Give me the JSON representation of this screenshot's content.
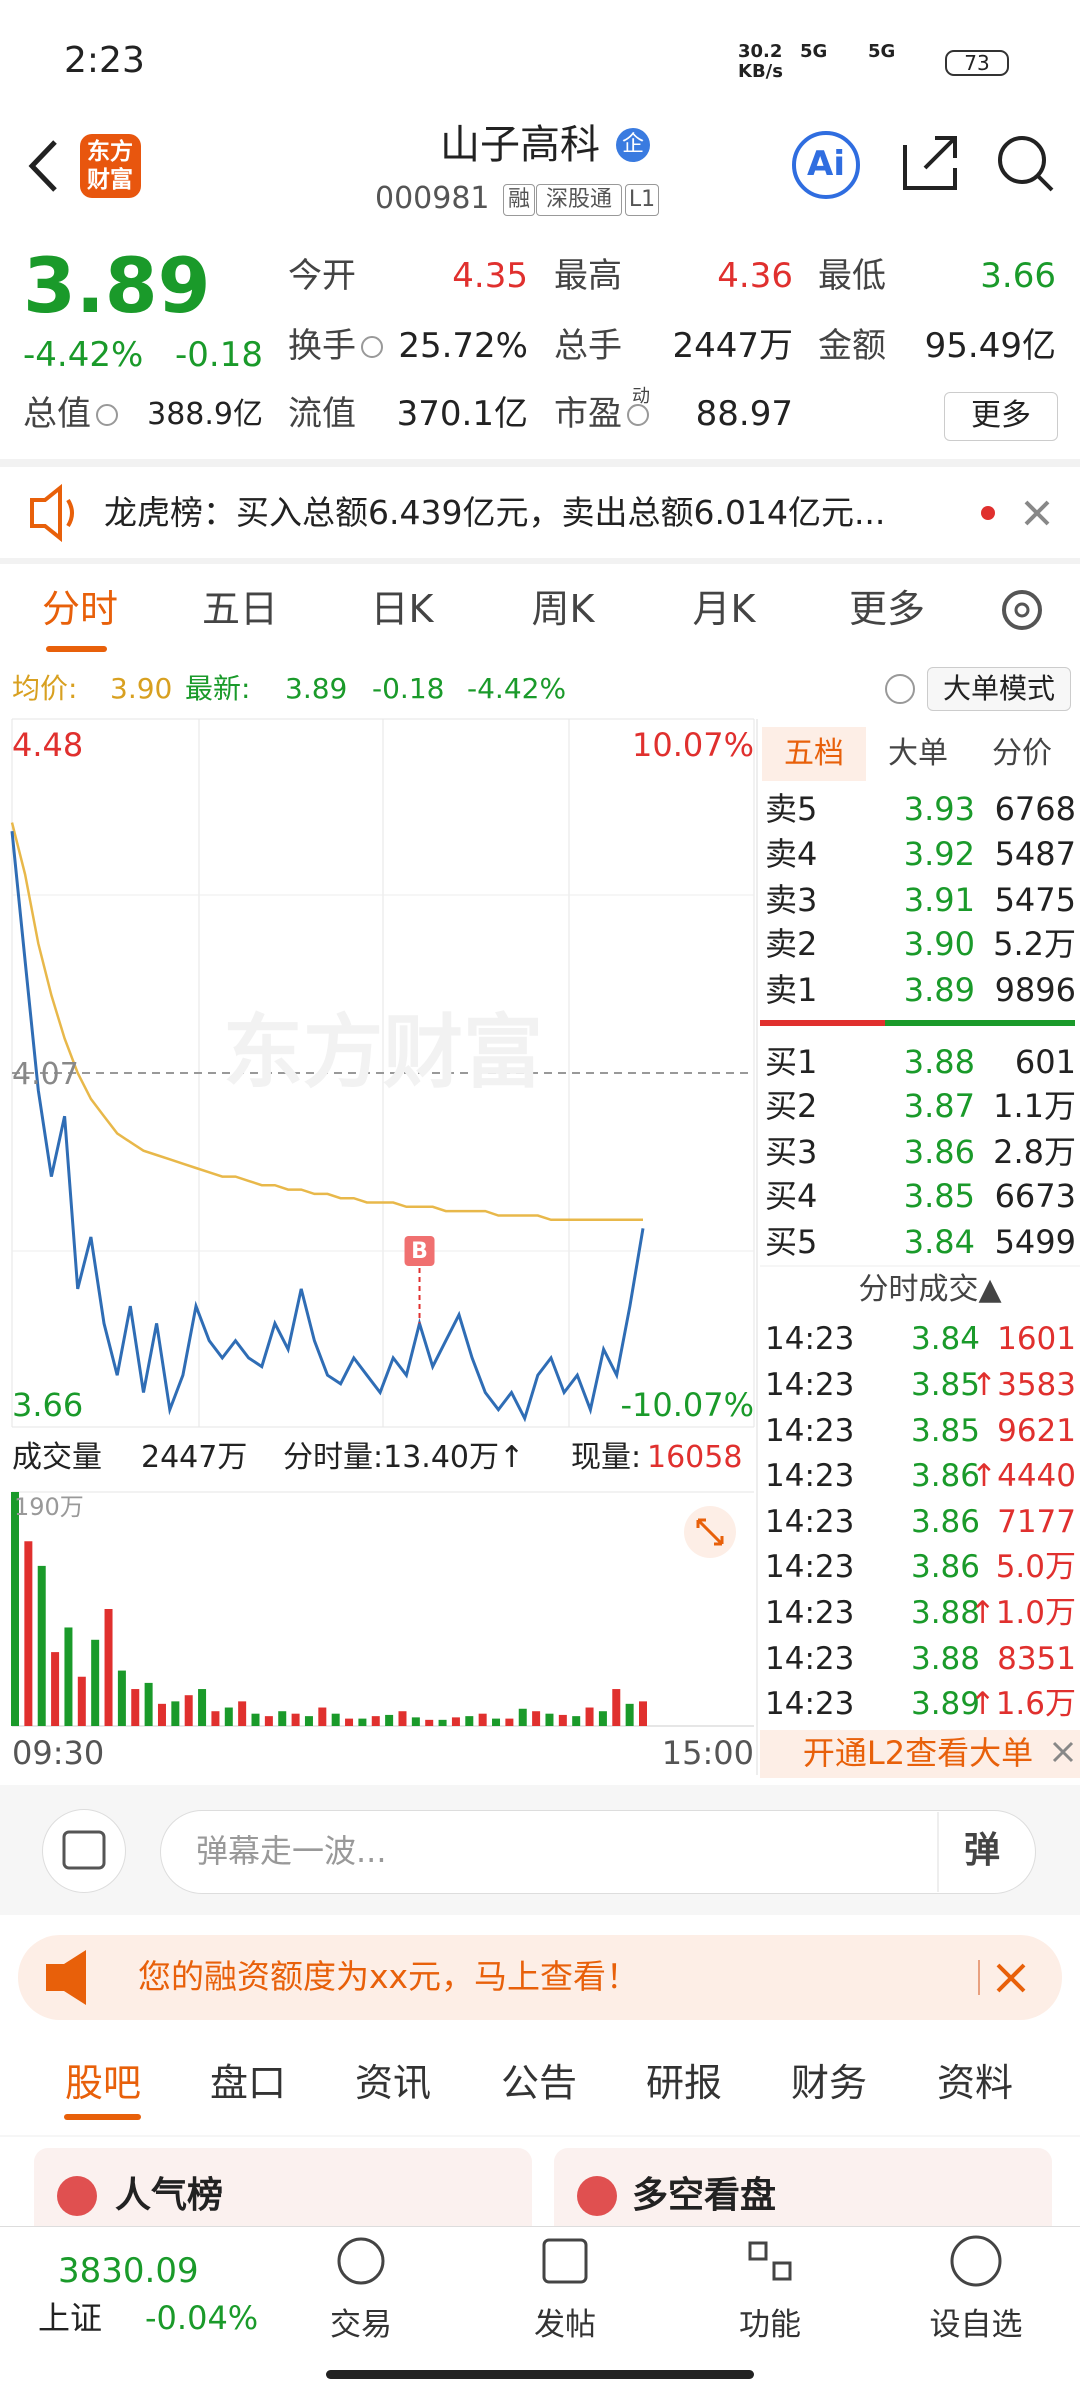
{
  "status": {
    "time": "2:23",
    "net_speed": "30.2",
    "net_unit": "KB/s",
    "signal": [
      "5G",
      "5G"
    ],
    "battery": "73"
  },
  "header": {
    "logo": "东方财富",
    "title": "山子高科",
    "badge": "企",
    "code": "000981",
    "tags": [
      "融",
      "深股通",
      "L1"
    ],
    "ai": "Ai"
  },
  "quote": {
    "price": "3.89",
    "change_pct": "-4.42%",
    "change": "-0.18",
    "stats": [
      {
        "label": "今开",
        "value": "4.35"
      },
      {
        "label": "最高",
        "value": "4.36"
      },
      {
        "label": "最低",
        "value": "3.66"
      },
      {
        "label": "换手",
        "value": "25.72%"
      },
      {
        "label": "总手",
        "value": "2447万"
      },
      {
        "label": "金额",
        "value": "95.49亿"
      },
      {
        "label": "总值",
        "value": "388.9亿"
      },
      {
        "label": "流值",
        "value": "370.1亿"
      },
      {
        "label": "市盈",
        "sup": "动",
        "value": "88.97"
      }
    ],
    "more": "更多"
  },
  "notice": {
    "text": "龙虎榜：买入总额6.439亿元，卖出总额6.014亿元..."
  },
  "chart_tabs": [
    "分时",
    "五日",
    "日K",
    "周K",
    "月K",
    "更多"
  ],
  "info": {
    "avg_label": "均价:",
    "avg": "3.90",
    "last_label": "最新:",
    "last": "3.89",
    "change": "-0.18",
    "change_pct": "-4.42%",
    "mode": "大单模式"
  },
  "intraday": {
    "type": "line",
    "watermark": "东方财富",
    "ylim": [
      3.66,
      4.48
    ],
    "pct_top": "10.07%",
    "pct_bottom": "-10.07%",
    "prev_close": 4.07,
    "price": [
      4.35,
      4.2,
      4.05,
      3.95,
      4.02,
      3.82,
      3.88,
      3.78,
      3.72,
      3.8,
      3.7,
      3.78,
      3.68,
      3.72,
      3.8,
      3.76,
      3.74,
      3.76,
      3.74,
      3.73,
      3.78,
      3.75,
      3.82,
      3.76,
      3.72,
      3.71,
      3.74,
      3.72,
      3.7,
      3.74,
      3.72,
      3.78,
      3.73,
      3.76,
      3.79,
      3.74,
      3.7,
      3.68,
      3.7,
      3.67,
      3.72,
      3.74,
      3.7,
      3.72,
      3.68,
      3.75,
      3.72,
      3.8,
      3.89
    ],
    "avg": [
      4.36,
      4.3,
      4.22,
      4.16,
      4.11,
      4.07,
      4.04,
      4.02,
      4.0,
      3.99,
      3.98,
      3.975,
      3.97,
      3.965,
      3.96,
      3.955,
      3.95,
      3.95,
      3.945,
      3.94,
      3.94,
      3.935,
      3.935,
      3.93,
      3.93,
      3.925,
      3.925,
      3.92,
      3.92,
      3.92,
      3.915,
      3.915,
      3.915,
      3.91,
      3.91,
      3.91,
      3.91,
      3.905,
      3.905,
      3.905,
      3.905,
      3.9,
      3.9,
      3.9,
      3.9,
      3.9,
      3.9,
      3.9,
      3.9
    ],
    "marker": "B",
    "xlabels": [
      "09:30",
      "15:00"
    ]
  },
  "volume": {
    "label": "成交量",
    "total": "2447万",
    "period": "分时量:13.40万↑",
    "current_label": "现量:",
    "current": "16058",
    "top_label": "190万",
    "ylim": [
      0,
      190
    ],
    "series": [
      {
        "color": "#e0302e",
        "values": [
          150,
          60,
          40,
          95,
          30,
          18,
          25,
          12,
          20,
          8,
          10,
          15,
          6,
          8,
          12,
          5,
          7,
          10,
          6,
          12,
          9,
          15,
          30,
          20
        ]
      },
      {
        "color": "#1a9a2a",
        "values": [
          190,
          130,
          80,
          70,
          45,
          35,
          20,
          30,
          15,
          10,
          12,
          8,
          10,
          6,
          9,
          7,
          5,
          8,
          6,
          14,
          10,
          8,
          12,
          18
        ]
      }
    ]
  },
  "book": {
    "tabs": [
      "五档",
      "大单",
      "分价"
    ],
    "sell": [
      {
        "label": "卖5",
        "price": "3.93",
        "volume": "6768"
      },
      {
        "label": "卖4",
        "price": "3.92",
        "volume": "5487"
      },
      {
        "label": "卖3",
        "price": "3.91",
        "volume": "5475"
      },
      {
        "label": "卖2",
        "price": "3.90",
        "volume": "5.2万"
      },
      {
        "label": "卖1",
        "price": "3.89",
        "volume": "9896"
      }
    ],
    "buy": [
      {
        "label": "买1",
        "price": "3.88",
        "volume": "601"
      },
      {
        "label": "买2",
        "price": "3.87",
        "volume": "1.1万"
      },
      {
        "label": "买3",
        "price": "3.86",
        "volume": "2.8万"
      },
      {
        "label": "买4",
        "price": "3.85",
        "volume": "6673"
      },
      {
        "label": "买5",
        "price": "3.84",
        "volume": "5499"
      }
    ]
  },
  "trades": {
    "title": "分时成交▲",
    "rows": [
      {
        "time": "14:23",
        "price": "3.84",
        "volume": "1601"
      },
      {
        "time": "14:23",
        "price": "3.85",
        "volume": "↑3583"
      },
      {
        "time": "14:23",
        "price": "3.85",
        "volume": "9621"
      },
      {
        "time": "14:23",
        "price": "3.86",
        "volume": "↑4440"
      },
      {
        "time": "14:23",
        "price": "3.86",
        "volume": "7177"
      },
      {
        "time": "14:23",
        "price": "3.86",
        "volume": "5.0万"
      },
      {
        "time": "14:23",
        "price": "3.88",
        "volume": "↑1.0万"
      },
      {
        "time": "14:23",
        "price": "3.88",
        "volume": "8351"
      },
      {
        "time": "14:23",
        "price": "3.89",
        "volume": "↑1.6万"
      }
    ]
  },
  "l2": "开通L2查看大单",
  "comment": {
    "placeholder": "弹幕走一波...",
    "button": "弹"
  },
  "banner": "您的融资额度为xx元，马上查看！",
  "bottom_tabs": [
    "股吧",
    "盘口",
    "资讯",
    "公告",
    "研报",
    "财务",
    "资料"
  ],
  "cards": [
    "人气榜",
    "多空看盘"
  ],
  "index": {
    "value": "3830.09",
    "name": "上证",
    "change": "-0.04%"
  },
  "nav": [
    "交易",
    "发帖",
    "功能",
    "设自选"
  ]
}
